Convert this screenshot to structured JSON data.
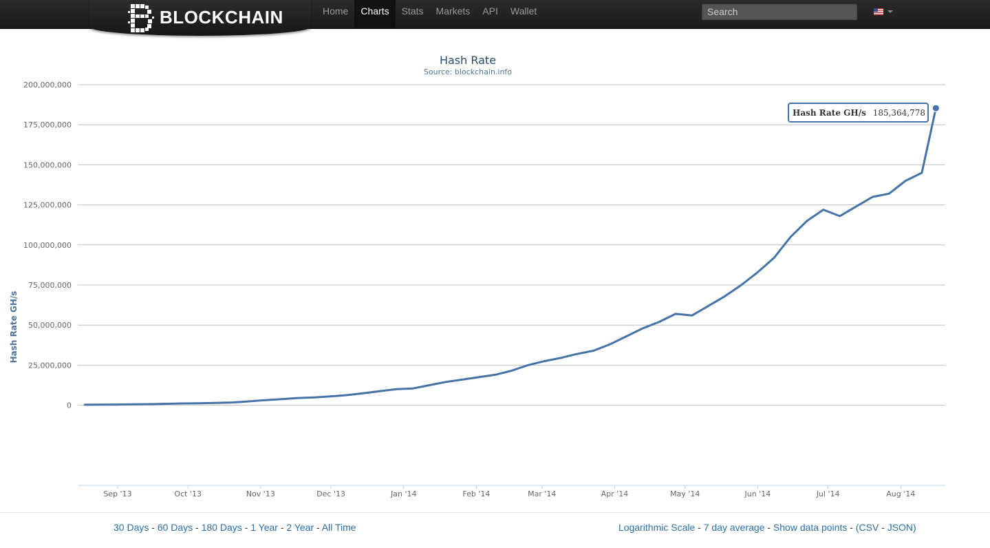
{
  "header": {
    "brand": "BLOCKCHAIN",
    "nav": [
      {
        "label": "Home",
        "active": false
      },
      {
        "label": "Charts",
        "active": true
      },
      {
        "label": "Stats",
        "active": false
      },
      {
        "label": "Markets",
        "active": false
      },
      {
        "label": "API",
        "active": false
      },
      {
        "label": "Wallet",
        "active": false
      }
    ],
    "search_placeholder": "Search",
    "language_icon": "us-flag-icon"
  },
  "chart_data": {
    "type": "line",
    "title": "Hash Rate",
    "subtitle": "Source: blockchain.info",
    "ylabel": "Hash Rate GH/s",
    "ylim": [
      -50000000,
      200000000
    ],
    "yticks": [
      {
        "value": 200000000,
        "label": "200,000,000"
      },
      {
        "value": 175000000,
        "label": "175,000,000"
      },
      {
        "value": 150000000,
        "label": "150,000,000"
      },
      {
        "value": 125000000,
        "label": "125,000,000"
      },
      {
        "value": 100000000,
        "label": "100,000,000"
      },
      {
        "value": 75000000,
        "label": "75,000,000"
      },
      {
        "value": 50000000,
        "label": "50,000,000"
      },
      {
        "value": 25000000,
        "label": "25,000,000"
      },
      {
        "value": 0,
        "label": "0"
      }
    ],
    "xlim": [
      "2013-08-15",
      "2014-08-20"
    ],
    "xticks": [
      {
        "date": "2013-09-01",
        "label": "Sep '13"
      },
      {
        "date": "2013-10-01",
        "label": "Oct '13"
      },
      {
        "date": "2013-11-01",
        "label": "Nov '13"
      },
      {
        "date": "2013-12-01",
        "label": "Dec '13"
      },
      {
        "date": "2014-01-01",
        "label": "Jan '14"
      },
      {
        "date": "2014-02-01",
        "label": "Feb '14"
      },
      {
        "date": "2014-03-01",
        "label": "Mar '14"
      },
      {
        "date": "2014-04-01",
        "label": "Apr '14"
      },
      {
        "date": "2014-05-01",
        "label": "May '14"
      },
      {
        "date": "2014-06-01",
        "label": "Jun '14"
      },
      {
        "date": "2014-07-01",
        "label": "Jul '14"
      },
      {
        "date": "2014-08-01",
        "label": "Aug '14"
      }
    ],
    "grid": true,
    "color": "#4572a7",
    "series": [
      {
        "name": "Hash Rate GH/s",
        "points": [
          [
            "2013-08-18",
            300000
          ],
          [
            "2013-08-25",
            350000
          ],
          [
            "2013-09-01",
            450000
          ],
          [
            "2013-09-08",
            550000
          ],
          [
            "2013-09-15",
            700000
          ],
          [
            "2013-09-22",
            900000
          ],
          [
            "2013-09-29",
            1100000
          ],
          [
            "2013-10-06",
            1200000
          ],
          [
            "2013-10-13",
            1400000
          ],
          [
            "2013-10-20",
            1700000
          ],
          [
            "2013-10-27",
            2400000
          ],
          [
            "2013-11-03",
            3200000
          ],
          [
            "2013-11-10",
            3800000
          ],
          [
            "2013-11-17",
            4500000
          ],
          [
            "2013-11-24",
            4900000
          ],
          [
            "2013-12-01",
            5500000
          ],
          [
            "2013-12-08",
            6300000
          ],
          [
            "2013-12-15",
            7500000
          ],
          [
            "2013-12-22",
            8800000
          ],
          [
            "2013-12-29",
            10000000
          ],
          [
            "2014-01-05",
            10500000
          ],
          [
            "2014-01-12",
            12500000
          ],
          [
            "2014-01-19",
            14500000
          ],
          [
            "2014-01-26",
            16000000
          ],
          [
            "2014-02-02",
            17500000
          ],
          [
            "2014-02-09",
            19000000
          ],
          [
            "2014-02-16",
            21500000
          ],
          [
            "2014-02-23",
            25000000
          ],
          [
            "2014-03-02",
            27500000
          ],
          [
            "2014-03-09",
            29500000
          ],
          [
            "2014-03-16",
            32000000
          ],
          [
            "2014-03-23",
            34000000
          ],
          [
            "2014-03-30",
            38000000
          ],
          [
            "2014-04-06",
            43000000
          ],
          [
            "2014-04-13",
            48000000
          ],
          [
            "2014-04-20",
            52000000
          ],
          [
            "2014-04-27",
            57000000
          ],
          [
            "2014-05-04",
            56000000
          ],
          [
            "2014-05-11",
            62000000
          ],
          [
            "2014-05-18",
            68000000
          ],
          [
            "2014-05-25",
            75000000
          ],
          [
            "2014-06-01",
            83000000
          ],
          [
            "2014-06-08",
            92000000
          ],
          [
            "2014-06-15",
            105000000
          ],
          [
            "2014-06-22",
            115000000
          ],
          [
            "2014-06-29",
            122000000
          ],
          [
            "2014-07-06",
            118000000
          ],
          [
            "2014-07-13",
            124000000
          ],
          [
            "2014-07-20",
            130000000
          ],
          [
            "2014-07-27",
            132000000
          ],
          [
            "2014-08-03",
            140000000
          ],
          [
            "2014-08-10",
            145000000
          ],
          [
            "2014-08-16",
            185364778
          ]
        ]
      }
    ],
    "tooltip": {
      "series_label": "Hash Rate GH/s",
      "value_label": "185,364,778"
    }
  },
  "footer": {
    "ranges": [
      "30 Days",
      "60 Days",
      "180 Days",
      "1 Year",
      "2 Year",
      "All Time"
    ],
    "options": [
      "Logarithmic Scale",
      "7 day average",
      "Show data points"
    ],
    "formats": [
      "CSV",
      "JSON"
    ]
  }
}
